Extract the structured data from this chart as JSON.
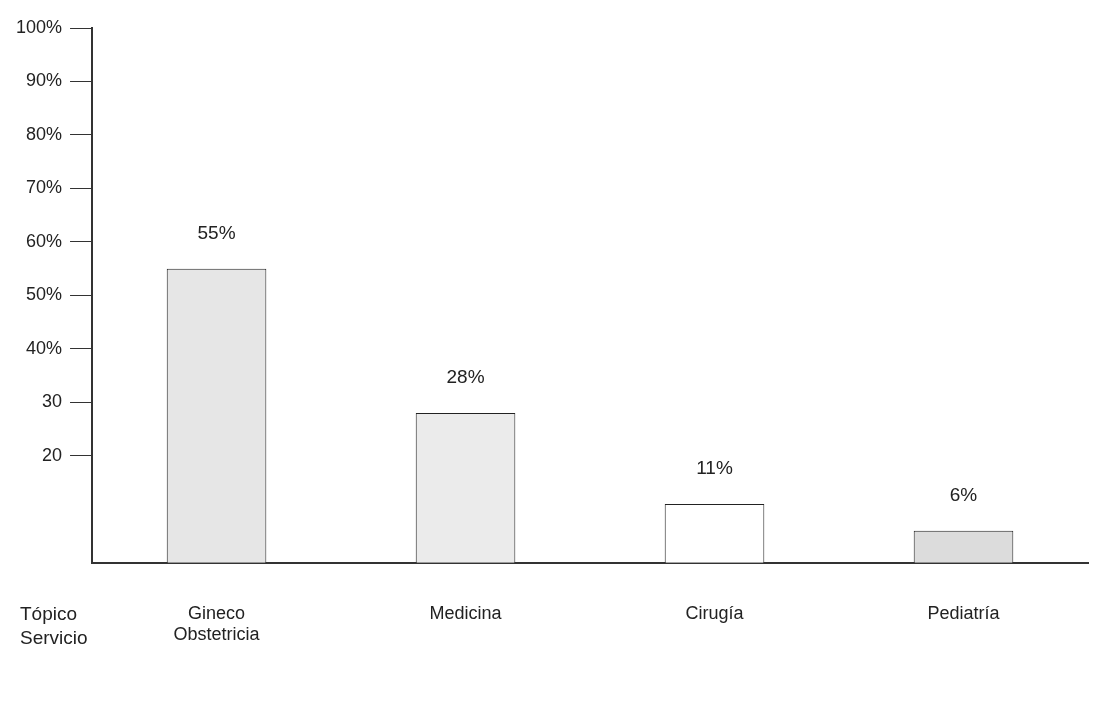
{
  "chart_data": {
    "type": "bar",
    "xlabel": "Tópico Servicio",
    "categories": [
      "Gineco Obstetricia",
      "Medicina",
      "Cirugía",
      "Pediatría"
    ],
    "values": [
      55,
      28,
      11,
      6
    ],
    "colors": [
      "#e6e6e6",
      "#ebebeb",
      "#ffffff",
      "#dcdcdc"
    ],
    "value_labels": [
      "55%",
      "28%",
      "11%",
      "6%"
    ],
    "ylim": [
      0,
      100
    ],
    "yticks": [
      {
        "value": 20,
        "label": "20"
      },
      {
        "value": 30,
        "label": "30"
      },
      {
        "value": 40,
        "label": "40%"
      },
      {
        "value": 50,
        "label": "50%"
      },
      {
        "value": 60,
        "label": "60%"
      },
      {
        "value": 70,
        "label": "70%"
      },
      {
        "value": 80,
        "label": "80%"
      },
      {
        "value": 90,
        "label": "90%"
      },
      {
        "value": 100,
        "label": "100%"
      }
    ],
    "grid": false,
    "legend": false
  }
}
